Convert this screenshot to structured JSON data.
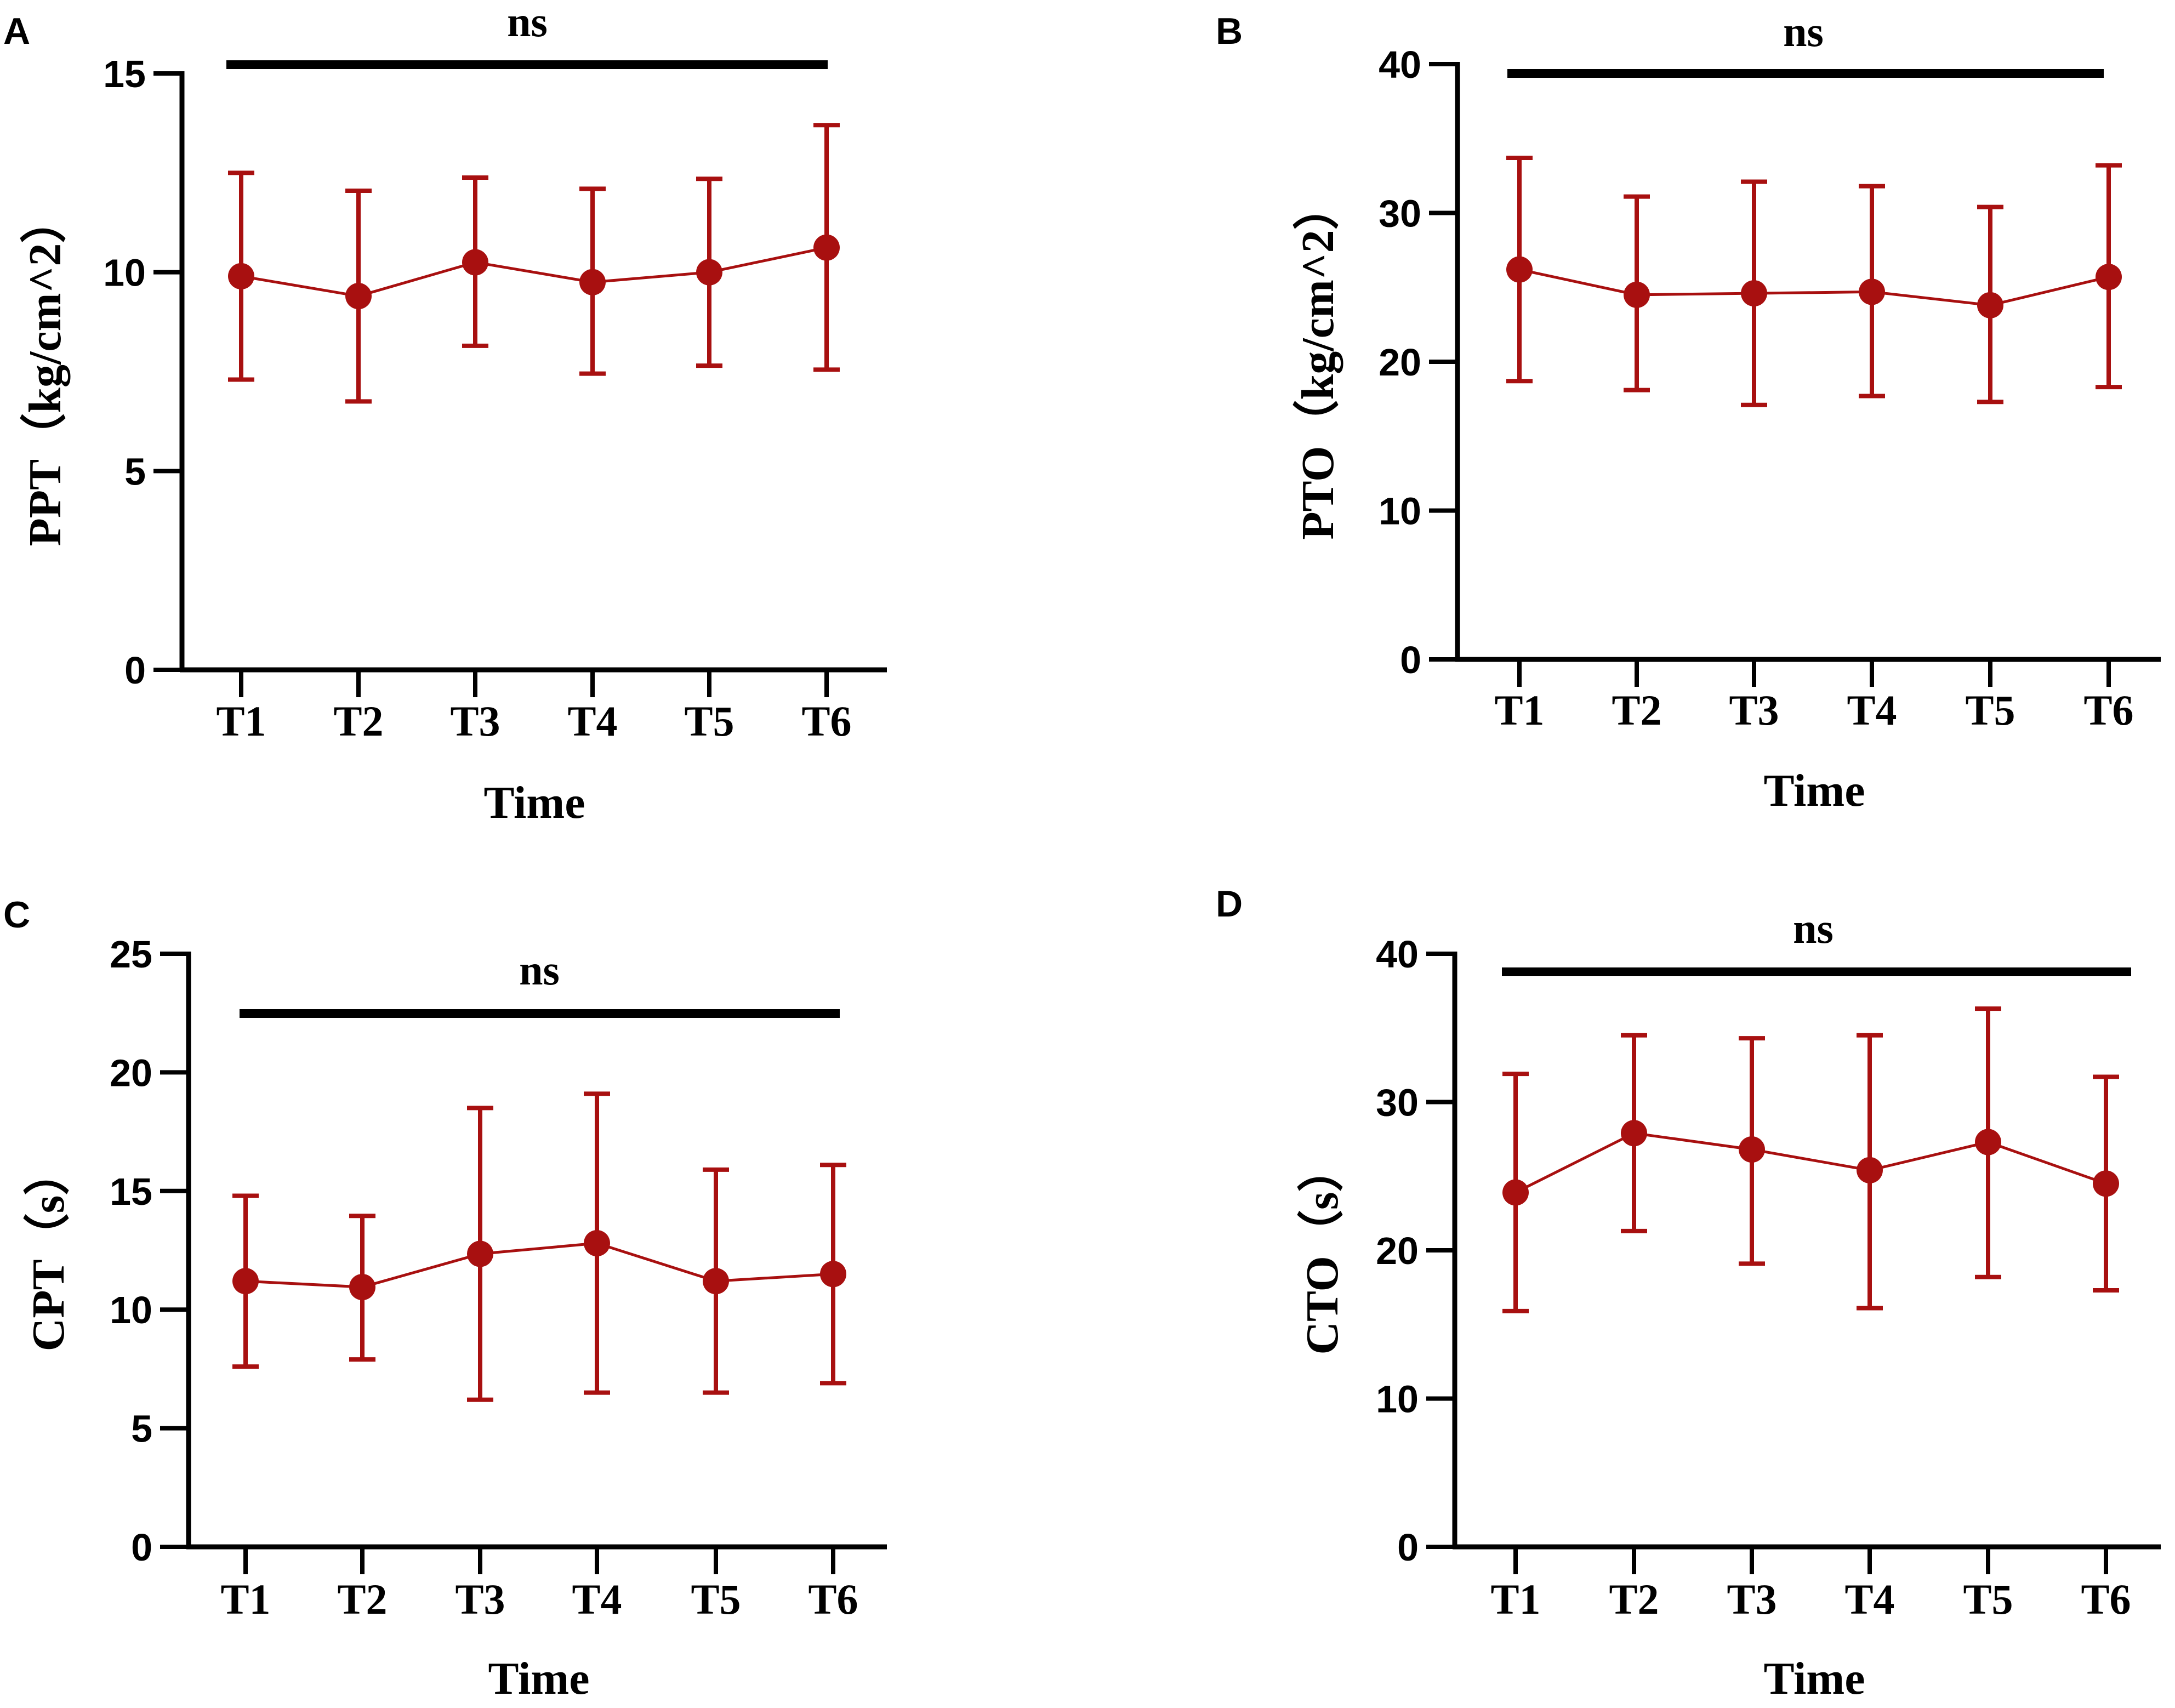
{
  "colors": {
    "series": "#a81010",
    "axis": "#000000",
    "background": "#ffffff"
  },
  "chart_data": [
    {
      "panel": "A",
      "type": "line",
      "categories": [
        "T1",
        "T2",
        "T3",
        "T4",
        "T5",
        "T6"
      ],
      "values": [
        9.9,
        9.4,
        10.25,
        9.75,
        10.0,
        10.62
      ],
      "error_low": [
        7.3,
        6.75,
        8.15,
        7.45,
        7.65,
        7.55
      ],
      "error_high": [
        12.5,
        12.05,
        12.38,
        12.1,
        12.35,
        13.7
      ],
      "title": "",
      "xlabel": "Time",
      "ylabel": "PPT（kg/cm^2）",
      "ylim": [
        0,
        15
      ],
      "yticks": [
        0,
        5,
        10,
        15
      ],
      "significance": "ns",
      "grid": false
    },
    {
      "panel": "B",
      "type": "line",
      "categories": [
        "T1",
        "T2",
        "T3",
        "T4",
        "T5",
        "T6"
      ],
      "values": [
        26.2,
        24.5,
        24.6,
        24.7,
        23.8,
        25.7
      ],
      "error_low": [
        18.7,
        18.1,
        17.1,
        17.7,
        17.3,
        18.3
      ],
      "error_high": [
        33.7,
        31.1,
        32.1,
        31.8,
        30.4,
        33.2
      ],
      "title": "",
      "xlabel": "Time",
      "ylabel": "PTO（kg/cm^2）",
      "ylim": [
        0,
        40
      ],
      "yticks": [
        0,
        10,
        20,
        30,
        40
      ],
      "significance": "ns",
      "grid": false
    },
    {
      "panel": "C",
      "type": "line",
      "categories": [
        "T1",
        "T2",
        "T3",
        "T4",
        "T5",
        "T6"
      ],
      "values": [
        11.2,
        10.95,
        12.35,
        12.8,
        11.2,
        11.5
      ],
      "error_low": [
        7.6,
        7.9,
        6.2,
        6.5,
        6.5,
        6.9
      ],
      "error_high": [
        14.8,
        13.95,
        18.5,
        19.1,
        15.9,
        16.1
      ],
      "title": "",
      "xlabel": "Time",
      "ylabel": "CPT（s）",
      "ylim": [
        0,
        25
      ],
      "yticks": [
        0,
        5,
        10,
        15,
        20,
        25
      ],
      "significance": "ns",
      "grid": false
    },
    {
      "panel": "D",
      "type": "line",
      "categories": [
        "T1",
        "T2",
        "T3",
        "T4",
        "T5",
        "T6"
      ],
      "values": [
        23.9,
        27.9,
        26.8,
        25.4,
        27.3,
        24.5
      ],
      "error_low": [
        15.9,
        21.3,
        19.1,
        16.1,
        18.2,
        17.3
      ],
      "error_high": [
        31.9,
        34.5,
        34.3,
        34.5,
        36.3,
        31.7
      ],
      "title": "",
      "xlabel": "Time",
      "ylabel": "CTO（s）",
      "ylim": [
        0,
        40
      ],
      "yticks": [
        0,
        10,
        20,
        30,
        40
      ],
      "significance": "ns",
      "grid": false
    }
  ]
}
